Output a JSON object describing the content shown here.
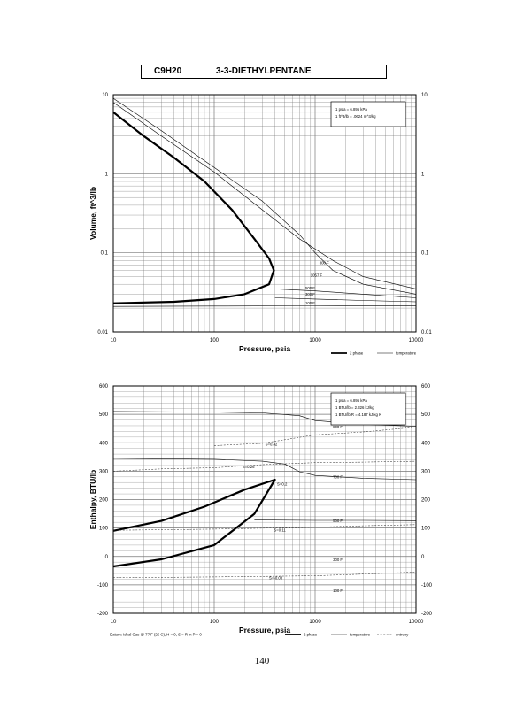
{
  "header": {
    "formula": "C9H20",
    "compound": "3-3-DIETHYLPENTANE"
  },
  "page_number": "140",
  "chart_data": [
    {
      "type": "line",
      "title": "",
      "xlabel": "Pressure,  psia",
      "ylabel": "Volume,  ft^3/lb",
      "x_scale": "log",
      "y_scale": "log",
      "xlim": [
        10,
        10000
      ],
      "ylim": [
        0.01,
        10
      ],
      "x_ticks": [
        "10",
        "100",
        "1000",
        "10000"
      ],
      "y_ticks": [
        "0.01",
        "0.1",
        "1",
        "10"
      ],
      "grid": true,
      "conversions": [
        "1 psia = 6.895 kPa",
        "1 ft^3/lb = .0624 m^3/kg"
      ],
      "legend": {
        "position": "bottom-right",
        "entries": [
          "2 phase",
          "temperature"
        ]
      },
      "series": [
        {
          "name": "2 phase",
          "x": [
            10,
            20,
            40,
            80,
            150,
            250,
            350,
            390,
            350,
            200,
            100,
            40,
            10
          ],
          "y": [
            6,
            3,
            1.6,
            0.8,
            0.35,
            0.15,
            0.085,
            0.06,
            0.04,
            0.03,
            0.026,
            0.024,
            0.023
          ]
        },
        {
          "name": "500 F",
          "x": [
            10,
            30,
            100,
            300,
            700,
            1000,
            1500,
            3000,
            10000
          ],
          "y": [
            9,
            3.5,
            1.2,
            0.45,
            0.17,
            0.1,
            0.06,
            0.04,
            0.03
          ]
        },
        {
          "name": "700 F",
          "x": [
            10,
            30,
            100,
            300,
            700,
            1500,
            3000,
            10000
          ],
          "y": [
            8,
            3,
            1.05,
            0.35,
            0.15,
            0.08,
            0.05,
            0.035
          ]
        },
        {
          "name": "500 F",
          "x": [
            400,
            1000,
            3000,
            10000
          ],
          "y": [
            0.035,
            0.033,
            0.03,
            0.027
          ]
        },
        {
          "name": "300 F",
          "x": [
            400,
            1000,
            3000,
            10000
          ],
          "y": [
            0.027,
            0.026,
            0.025,
            0.024
          ]
        },
        {
          "name": "100 F",
          "x": [
            10,
            100,
            1000,
            10000
          ],
          "y": [
            0.021,
            0.0212,
            0.0214,
            0.0215
          ]
        }
      ],
      "annotations": [
        {
          "text": "800 F",
          "x": 1100,
          "y": 0.075
        },
        {
          "text": "1057 F",
          "x": 900,
          "y": 0.052
        },
        {
          "text": "500 F",
          "x": 800,
          "y": 0.036
        },
        {
          "text": "300 F",
          "x": 800,
          "y": 0.03
        },
        {
          "text": "100 F",
          "x": 800,
          "y": 0.023
        }
      ]
    },
    {
      "type": "line",
      "title": "",
      "xlabel": "Pressure,  psia",
      "ylabel": "Enthalpy, BTU/lb",
      "x_scale": "log",
      "xlim": [
        10,
        10000
      ],
      "ylim": [
        -200,
        600
      ],
      "x_ticks": [
        "10",
        "100",
        "1000",
        "10000"
      ],
      "y_ticks": [
        "-200",
        "-100",
        "0",
        "100",
        "200",
        "300",
        "400",
        "500",
        "600"
      ],
      "grid": true,
      "conversions": [
        "1 psia = 6.895 kPa",
        "1 BTU/lb = 2.326 kJ/kg",
        "1 BTU/lb R = 4.187 kJ/kg K"
      ],
      "legend": {
        "position": "bottom-right",
        "entries": [
          "2 phase",
          "temperature",
          "entropy"
        ]
      },
      "footnote": "Datum: Ideal Gas @ 77 F (25 C), H = 0, S = R ln P = 0",
      "series": [
        {
          "name": "2 phase",
          "x": [
            10,
            30,
            80,
            200,
            400,
            250,
            100,
            30,
            10
          ],
          "y": [
            90,
            125,
            175,
            235,
            270,
            150,
            40,
            -10,
            -35
          ]
        },
        {
          "name": "800 F",
          "x": [
            10,
            100,
            300,
            700,
            1000,
            3000,
            10000
          ],
          "y": [
            510,
            508,
            505,
            495,
            478,
            465,
            458
          ]
        },
        {
          "name": "700 F",
          "x": [
            10,
            100,
            300,
            500,
            700,
            1000,
            3000,
            10000
          ],
          "y": [
            345,
            342,
            335,
            325,
            298,
            285,
            275,
            270
          ]
        },
        {
          "name": "500 F",
          "x": [
            250,
            1000,
            3000,
            10000
          ],
          "y": [
            128,
            127,
            127,
            126
          ]
        },
        {
          "name": "300 F",
          "x": [
            250,
            1000,
            3000,
            10000
          ],
          "y": [
            -5,
            -5,
            -5,
            -5
          ]
        },
        {
          "name": "100 F",
          "x": [
            250,
            1000,
            3000,
            10000
          ],
          "y": [
            -115,
            -115,
            -114,
            -114
          ]
        },
        {
          "name": "S=0.42",
          "x": [
            100,
            300,
            1000,
            3000,
            10000
          ],
          "y": [
            390,
            398,
            428,
            438,
            455
          ]
        },
        {
          "name": "S=0.26",
          "x": [
            10,
            30,
            100,
            300,
            1000,
            3000,
            10000
          ],
          "y": [
            300,
            308,
            312,
            323,
            330,
            332,
            335
          ]
        },
        {
          "name": "S=0.11",
          "x": [
            10,
            100,
            1000,
            3000,
            10000
          ],
          "y": [
            92,
            96,
            103,
            108,
            112
          ]
        },
        {
          "name": "S=-0.08",
          "x": [
            10,
            100,
            1000,
            3000,
            10000
          ],
          "y": [
            -75,
            -72,
            -68,
            -62,
            -55
          ]
        }
      ],
      "annotations": [
        {
          "text": "S=0.42",
          "x": 320,
          "y": 395
        },
        {
          "text": "S=0.26",
          "x": 190,
          "y": 315
        },
        {
          "text": "S=0.2",
          "x": 420,
          "y": 255
        },
        {
          "text": "S=0.11",
          "x": 390,
          "y": 92
        },
        {
          "text": "S=-0.08",
          "x": 350,
          "y": -75
        },
        {
          "text": "800 F",
          "x": 1500,
          "y": 455
        },
        {
          "text": "700 F",
          "x": 1500,
          "y": 280
        },
        {
          "text": "500 F",
          "x": 1500,
          "y": 125
        },
        {
          "text": "300 F",
          "x": 1500,
          "y": -12
        },
        {
          "text": "100 F",
          "x": 1500,
          "y": -120
        }
      ]
    }
  ]
}
